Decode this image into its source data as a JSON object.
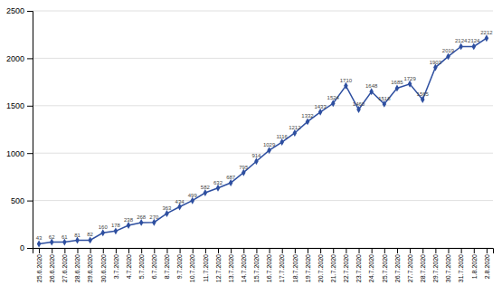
{
  "chart_data": {
    "type": "line",
    "categories": [
      "25.6.2020",
      "26.6.2020",
      "27.6.2020",
      "28.6.2020",
      "29.6.2020",
      "30.6.2020",
      "3.7.2020",
      "4.7.2020",
      "5.7.2020",
      "6.7.2020",
      "8.7.2020",
      "9.7.2020",
      "10.7.2020",
      "11.7.2020",
      "12.7.2020",
      "13.7.2020",
      "14.7.2020",
      "15.7.2020",
      "16.7.2020",
      "17.7.2020",
      "18.7.2020",
      "19.7.2020",
      "20.7.2020",
      "21.7.2020",
      "22.7.2020",
      "23.7.2020",
      "24.7.2020",
      "25.7.2020",
      "26.7.2020",
      "27.7.2020",
      "28.7.2020",
      "29.7.2020",
      "30.7.2020",
      "31.7.2020",
      "1.8.2020",
      "2.8.2020"
    ],
    "values": [
      43,
      62,
      61,
      81,
      82,
      160,
      178,
      238,
      268,
      270,
      363,
      434,
      499,
      582,
      632,
      687,
      795,
      914,
      1029,
      1116,
      1212,
      1332,
      1433,
      1524,
      1710,
      1460,
      1648,
      1518,
      1685,
      1729,
      1565,
      1903,
      2019,
      2124,
      2124,
      2212
    ],
    "color": "#2E4FA0",
    "marker": "diamond",
    "ylim": [
      0,
      2500
    ],
    "yticks": [
      0,
      500,
      1000,
      1500,
      2000,
      2500
    ],
    "grid": true,
    "data_labels": true
  }
}
